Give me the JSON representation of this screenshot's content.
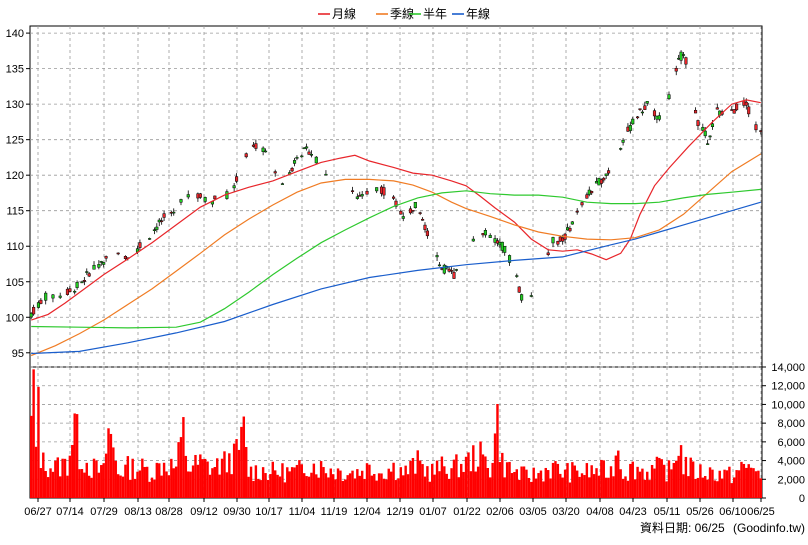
{
  "legend": [
    {
      "label": "月線",
      "color": "#e8262b"
    },
    {
      "label": "季線",
      "color": "#f07c24"
    },
    {
      "label": "半年",
      "color": "#2fc92f"
    },
    {
      "label": "年線",
      "color": "#1a5ecc"
    }
  ],
  "footer": {
    "date_label": "資料日期: 06/25",
    "source": "(Goodinfo.tw)"
  },
  "chart_data": [
    {
      "type": "candlestick",
      "title": "",
      "ylim": [
        93,
        141
      ],
      "yticks": [
        95,
        100,
        105,
        110,
        115,
        120,
        125,
        130,
        135,
        140
      ],
      "xticks": [
        "06/27",
        "07/14",
        "07/29",
        "08/13",
        "08/28",
        "09/12",
        "09/30",
        "10/17",
        "11/04",
        "11/19",
        "12/04",
        "12/19",
        "01/07",
        "01/22",
        "02/06",
        "03/05",
        "03/20",
        "04/08",
        "04/23",
        "05/11",
        "05/26",
        "06/10",
        "06/25"
      ],
      "grid": true,
      "series": [
        {
          "name": "月線",
          "color": "#e8262b",
          "points": [
            [
              0,
              99.6
            ],
            [
              7,
              100.4
            ],
            [
              14,
              102.0
            ],
            [
              22,
              104.0
            ],
            [
              30,
              106.0
            ],
            [
              40,
              108.2
            ],
            [
              50,
              110.5
            ],
            [
              60,
              113.0
            ],
            [
              70,
              115.5
            ],
            [
              80,
              117.2
            ],
            [
              90,
              118.3
            ],
            [
              100,
              119.2
            ],
            [
              110,
              120.5
            ],
            [
              120,
              121.8
            ],
            [
              128,
              122.4
            ],
            [
              134,
              122.8
            ],
            [
              140,
              122.0
            ],
            [
              150,
              121.1
            ],
            [
              158,
              120.3
            ],
            [
              166,
              120.0
            ],
            [
              174,
              119.2
            ],
            [
              180,
              118.5
            ],
            [
              186,
              117.0
            ],
            [
              192,
              115.4
            ],
            [
              200,
              113.4
            ],
            [
              207,
              111.0
            ],
            [
              214,
              109.5
            ],
            [
              220,
              109.3
            ],
            [
              226,
              109.5
            ],
            [
              232,
              108.9
            ],
            [
              238,
              108.1
            ],
            [
              244,
              109.0
            ],
            [
              248,
              111.0
            ],
            [
              252,
              114.5
            ],
            [
              258,
              118.5
            ],
            [
              264,
              121.0
            ],
            [
              272,
              124.0
            ],
            [
              282,
              127.5
            ],
            [
              290,
              130.0
            ],
            [
              296,
              130.6
            ],
            [
              302,
              130.2
            ]
          ]
        },
        {
          "name": "季線",
          "color": "#f07c24",
          "points": [
            [
              0,
              94.6
            ],
            [
              10,
              96.0
            ],
            [
              20,
              97.7
            ],
            [
              30,
              99.6
            ],
            [
              40,
              101.8
            ],
            [
              50,
              104.0
            ],
            [
              60,
              106.5
            ],
            [
              70,
              109.0
            ],
            [
              80,
              111.6
            ],
            [
              90,
              113.8
            ],
            [
              100,
              115.8
            ],
            [
              110,
              117.6
            ],
            [
              120,
              118.9
            ],
            [
              130,
              119.4
            ],
            [
              140,
              119.4
            ],
            [
              150,
              119.2
            ],
            [
              158,
              118.6
            ],
            [
              166,
              117.6
            ],
            [
              174,
              116.2
            ],
            [
              180,
              115.3
            ],
            [
              190,
              114.2
            ],
            [
              200,
              113.0
            ],
            [
              210,
              112.0
            ],
            [
              220,
              111.4
            ],
            [
              230,
              111.0
            ],
            [
              240,
              110.9
            ],
            [
              250,
              111.2
            ],
            [
              260,
              112.3
            ],
            [
              270,
              114.5
            ],
            [
              280,
              117.5
            ],
            [
              290,
              120.5
            ],
            [
              302,
              123.0
            ]
          ]
        },
        {
          "name": "半年",
          "color": "#2fc92f",
          "points": [
            [
              0,
              98.7
            ],
            [
              20,
              98.6
            ],
            [
              40,
              98.5
            ],
            [
              60,
              98.6
            ],
            [
              70,
              99.3
            ],
            [
              80,
              101.2
            ],
            [
              90,
              103.5
            ],
            [
              100,
              106.0
            ],
            [
              110,
              108.3
            ],
            [
              120,
              110.5
            ],
            [
              130,
              112.3
            ],
            [
              140,
              114.0
            ],
            [
              150,
              115.6
            ],
            [
              160,
              116.8
            ],
            [
              170,
              117.5
            ],
            [
              180,
              117.8
            ],
            [
              190,
              117.4
            ],
            [
              200,
              117.2
            ],
            [
              210,
              117.2
            ],
            [
              220,
              116.9
            ],
            [
              230,
              116.2
            ],
            [
              240,
              116.0
            ],
            [
              250,
              116.0
            ],
            [
              260,
              116.2
            ],
            [
              270,
              116.8
            ],
            [
              280,
              117.3
            ],
            [
              290,
              117.6
            ],
            [
              302,
              118.0
            ]
          ]
        },
        {
          "name": "年線",
          "color": "#1a5ecc",
          "points": [
            [
              0,
              94.9
            ],
            [
              20,
              95.2
            ],
            [
              40,
              96.4
            ],
            [
              60,
              97.8
            ],
            [
              80,
              99.4
            ],
            [
              100,
              101.8
            ],
            [
              120,
              104.0
            ],
            [
              140,
              105.6
            ],
            [
              160,
              106.6
            ],
            [
              180,
              107.4
            ],
            [
              200,
              108.0
            ],
            [
              220,
              108.5
            ],
            [
              240,
              110.2
            ],
            [
              250,
              111.0
            ],
            [
              260,
              112.0
            ],
            [
              270,
              113.0
            ],
            [
              280,
              114.0
            ],
            [
              290,
              115.0
            ],
            [
              302,
              116.2
            ]
          ]
        }
      ],
      "price_keys": [
        [
          0,
          100.5
        ],
        [
          5,
          102.8
        ],
        [
          10,
          103.0
        ],
        [
          15,
          103.5
        ],
        [
          20,
          104.6
        ],
        [
          25,
          106.8
        ],
        [
          30,
          108.0
        ],
        [
          35,
          108.6
        ],
        [
          40,
          108.8
        ],
        [
          45,
          110.0
        ],
        [
          50,
          112.0
        ],
        [
          55,
          114.0
        ],
        [
          60,
          115.0
        ],
        [
          65,
          117.5
        ],
        [
          70,
          117.0
        ],
        [
          75,
          116.5
        ],
        [
          80,
          117.0
        ],
        [
          83,
          117.8
        ],
        [
          86,
          120.0
        ],
        [
          90,
          123.3
        ],
        [
          94,
          124.5
        ],
        [
          98,
          123.0
        ],
        [
          102,
          119.0
        ],
        [
          106,
          119.0
        ],
        [
          110,
          123.0
        ],
        [
          115,
          123.5
        ],
        [
          120,
          121.5
        ],
        [
          125,
          118.0
        ],
        [
          130,
          119.0
        ],
        [
          135,
          117.0
        ],
        [
          140,
          118.0
        ],
        [
          145,
          118.0
        ],
        [
          150,
          116.5
        ],
        [
          155,
          114.0
        ],
        [
          160,
          116.5
        ],
        [
          165,
          110.5
        ],
        [
          170,
          107.0
        ],
        [
          175,
          106.0
        ],
        [
          180,
          110.0
        ],
        [
          185,
          112.0
        ],
        [
          190,
          111.5
        ],
        [
          195,
          110.0
        ],
        [
          200,
          107.0
        ],
        [
          202,
          104.0
        ],
        [
          205,
          101.0
        ],
        [
          208,
          104.0
        ],
        [
          212,
          108.0
        ],
        [
          216,
          110.8
        ],
        [
          220,
          110.8
        ],
        [
          225,
          114.0
        ],
        [
          230,
          117.0
        ],
        [
          235,
          119.0
        ],
        [
          240,
          121.0
        ],
        [
          245,
          125.0
        ],
        [
          250,
          128.0
        ],
        [
          255,
          130.0
        ],
        [
          260,
          128.0
        ],
        [
          265,
          132.0
        ],
        [
          268,
          136.0
        ],
        [
          270,
          137.5
        ],
        [
          273,
          133.0
        ],
        [
          276,
          127.5
        ],
        [
          280,
          125.0
        ],
        [
          284,
          129.0
        ],
        [
          288,
          128.0
        ],
        [
          292,
          129.5
        ],
        [
          296,
          130.3
        ],
        [
          299,
          127.0
        ],
        [
          302,
          126.0
        ]
      ]
    },
    {
      "type": "bar",
      "title": "",
      "ylim": [
        0,
        14000
      ],
      "yticks": [
        0,
        2000,
        4000,
        6000,
        8000,
        10000,
        12000,
        14000
      ],
      "ytick_labels": [
        "0",
        "2,000",
        "4,000",
        "6,000",
        "8,000",
        "10,000",
        "12,000",
        "14,000"
      ],
      "color": "#ff0000",
      "volume_keys": [
        [
          0,
          8000
        ],
        [
          1,
          14000
        ],
        [
          2,
          4500
        ],
        [
          3,
          12500
        ],
        [
          4,
          5000
        ],
        [
          5,
          4000
        ],
        [
          10,
          3500
        ],
        [
          15,
          4000
        ],
        [
          18,
          9000
        ],
        [
          20,
          5000
        ],
        [
          25,
          3500
        ],
        [
          30,
          3000
        ],
        [
          32,
          8000
        ],
        [
          36,
          3000
        ],
        [
          40,
          3500
        ],
        [
          45,
          3500
        ],
        [
          50,
          3000
        ],
        [
          55,
          4000
        ],
        [
          60,
          3500
        ],
        [
          63,
          7500
        ],
        [
          65,
          3500
        ],
        [
          70,
          4000
        ],
        [
          75,
          3500
        ],
        [
          80,
          4000
        ],
        [
          85,
          5000
        ],
        [
          88,
          7500
        ],
        [
          90,
          3000
        ],
        [
          95,
          3200
        ],
        [
          100,
          3000
        ],
        [
          105,
          3000
        ],
        [
          110,
          3000
        ],
        [
          115,
          4000
        ],
        [
          120,
          3500
        ],
        [
          125,
          3200
        ],
        [
          130,
          3000
        ],
        [
          135,
          3000
        ],
        [
          140,
          3500
        ],
        [
          145,
          3000
        ],
        [
          150,
          3500
        ],
        [
          155,
          3000
        ],
        [
          160,
          4000
        ],
        [
          165,
          3000
        ],
        [
          170,
          3500
        ],
        [
          175,
          3500
        ],
        [
          180,
          4000
        ],
        [
          185,
          5000
        ],
        [
          190,
          3500
        ],
        [
          193,
          9000
        ],
        [
          195,
          4000
        ],
        [
          200,
          3000
        ],
        [
          205,
          2500
        ],
        [
          210,
          2800
        ],
        [
          215,
          3500
        ],
        [
          220,
          3000
        ],
        [
          225,
          3000
        ],
        [
          230,
          3000
        ],
        [
          235,
          3200
        ],
        [
          240,
          3000
        ],
        [
          243,
          6000
        ],
        [
          245,
          3000
        ],
        [
          250,
          3500
        ],
        [
          255,
          3000
        ],
        [
          260,
          3500
        ],
        [
          265,
          3000
        ],
        [
          268,
          6500
        ],
        [
          270,
          4000
        ],
        [
          275,
          3000
        ],
        [
          280,
          3000
        ],
        [
          285,
          2800
        ],
        [
          290,
          2600
        ],
        [
          295,
          3500
        ],
        [
          298,
          3500
        ],
        [
          300,
          4000
        ],
        [
          302,
          2000
        ]
      ]
    }
  ]
}
